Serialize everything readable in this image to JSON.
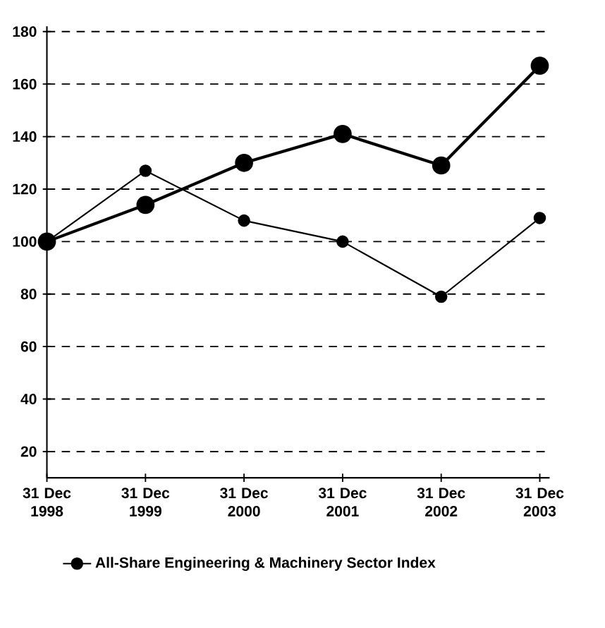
{
  "chart_data": {
    "type": "line",
    "categories": [
      "31 Dec 1998",
      "31 Dec 1999",
      "31 Dec 2000",
      "31 Dec 2001",
      "31 Dec 2002",
      "31 Dec 2003"
    ],
    "series": [
      {
        "color": "#000000",
        "values": [
          100,
          114,
          130,
          141,
          129,
          167
        ]
      },
      {
        "name": "All-Share Engineering & Machinery Sector Index",
        "color": "#000000",
        "values": [
          100,
          127,
          108,
          100,
          79,
          109
        ]
      }
    ],
    "ylim": [
      10,
      182
    ],
    "yticks": [
      20,
      40,
      60,
      80,
      100,
      120,
      140,
      160,
      180
    ],
    "grid": "y",
    "legend": "bottom",
    "marker": "circle",
    "line_style": "solid"
  }
}
